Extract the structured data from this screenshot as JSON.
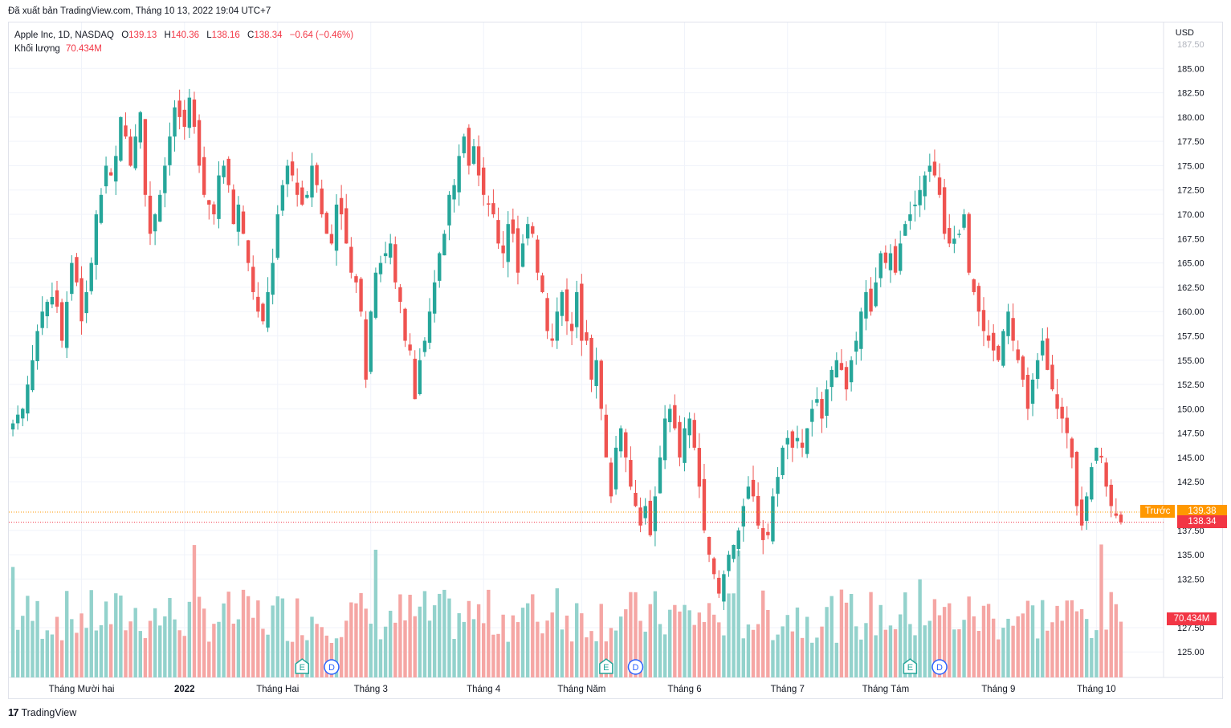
{
  "caption": "Đã xuất bản TradingView.com, Tháng 10 13, 2022 19:04 UTC+7",
  "legend": {
    "symbol": "Apple Inc, 1D, NASDAQ",
    "o_label": "O",
    "o_value": "139.13",
    "h_label": "H",
    "h_value": "140.36",
    "l_label": "L",
    "l_value": "138.16",
    "c_label": "C",
    "c_value": "138.34",
    "change": "−0.64 (−0.46%)",
    "volume_label": "Khối lượng",
    "volume_value": "70.434M"
  },
  "currency": "USD",
  "prev_label": "Trước",
  "prev_value": "139.38",
  "last_value": "138.34",
  "volume_badge": "70.434M",
  "footer": "TradingView",
  "colors": {
    "up": "#26a69a",
    "down": "#ef5350",
    "vol_up": "#93d2cc",
    "vol_down": "#f5a6a4",
    "prev": "#ff9800"
  },
  "events": [
    {
      "type": "E",
      "x_index": 59
    },
    {
      "type": "D",
      "x_index": 65
    },
    {
      "type": "E",
      "x_index": 121
    },
    {
      "type": "D",
      "x_index": 127
    },
    {
      "type": "E",
      "x_index": 183
    },
    {
      "type": "D",
      "x_index": 189
    }
  ],
  "chart_data": {
    "type": "candlestick",
    "ylim": [
      123.7,
      187.5
    ],
    "y_ticks": [
      "185.00",
      "182.50",
      "180.00",
      "177.50",
      "175.00",
      "172.50",
      "170.00",
      "167.50",
      "165.00",
      "162.50",
      "160.00",
      "157.50",
      "155.00",
      "152.50",
      "150.00",
      "147.50",
      "145.00",
      "142.50",
      "137.50",
      "135.00",
      "132.50",
      "127.50",
      "125.00"
    ],
    "x_ticks": [
      {
        "label": "Tháng Mười hai",
        "index": 14
      },
      {
        "label": "2022",
        "index": 35
      },
      {
        "label": "Tháng Hai",
        "index": 54
      },
      {
        "label": "Tháng 3",
        "index": 73
      },
      {
        "label": "Tháng 4",
        "index": 96
      },
      {
        "label": "Tháng Năm",
        "index": 116
      },
      {
        "label": "Tháng 6",
        "index": 137
      },
      {
        "label": "Tháng 7",
        "index": 158
      },
      {
        "label": "Tháng Tám",
        "index": 178
      },
      {
        "label": "Tháng 9",
        "index": 201
      },
      {
        "label": "Tháng 10",
        "index": 221
      }
    ],
    "close_path": [
      148.5,
      149.4,
      150.0,
      152.5,
      155.0,
      158.0,
      160.0,
      161.0,
      161.5,
      160.5,
      157.0,
      161.0,
      165.0,
      163.0,
      159.0,
      162.0,
      165.0,
      170.0,
      172.0,
      175.0,
      174.0,
      176.0,
      180.0,
      178.0,
      175.0,
      178.0,
      180.5,
      172.0,
      168.0,
      170.0,
      172.0,
      175.0,
      178.0,
      181.0,
      180.0,
      179.0,
      182.0,
      179.0,
      175.0,
      172.0,
      171.0,
      170.0,
      174.0,
      175.0,
      173.0,
      169.0,
      171.0,
      168.0,
      165.0,
      162.0,
      160.0,
      159.0,
      162.0,
      165.0,
      170.0,
      173.0,
      175.0,
      174.0,
      172.0,
      171.0,
      172.0,
      175.0,
      173.0,
      170.0,
      168.0,
      167.0,
      171.0,
      170.0,
      167.0,
      164.0,
      163.0,
      160.0,
      153.0,
      160.0,
      164.0,
      165.0,
      166.0,
      167.0,
      163.0,
      161.0,
      157.0,
      156.0,
      151.0,
      155.0,
      157.0,
      160.0,
      163.0,
      166.0,
      168.0,
      172.0,
      173.0,
      176.0,
      178.0,
      175.0,
      177.0,
      174.0,
      172.0,
      171.0,
      170.0,
      167.0,
      166.0,
      169.0,
      168.0,
      164.0,
      167.0,
      169.0,
      168.0,
      164.0,
      162.0,
      158.0,
      157.0,
      160.0,
      162.0,
      159.0,
      158.0,
      162.0,
      157.0,
      157.0,
      153.0,
      155.0,
      150.0,
      145.0,
      141.0,
      146.0,
      148.0,
      145.0,
      142.0,
      140.0,
      138.0,
      140.0,
      137.0,
      141.0,
      145.0,
      149.0,
      150.0,
      148.0,
      145.0,
      148.0,
      149.0,
      146.0,
      142.0,
      137.5,
      135.0,
      133.0,
      131.0,
      133.0,
      135.0,
      136.0,
      137.5,
      140.0,
      142.0,
      141.0,
      138.0,
      136.5,
      137.0,
      141.0,
      143.0,
      146.0,
      147.0,
      146.0,
      147.0,
      146.0,
      148.0,
      150.0,
      151.0,
      149.0,
      152.0,
      154.0,
      155.0,
      154.0,
      152.0,
      155.0,
      157.0,
      160.0,
      162.0,
      160.0,
      163.0,
      166.0,
      165.0,
      166.0,
      164.0,
      167.0,
      169.0,
      170.0,
      171.0,
      172.5,
      174.0,
      175.0,
      174.0,
      172.0,
      168.0,
      167.0,
      167.5,
      168.0,
      170.0,
      164.0,
      162.0,
      160.0,
      158.0,
      157.0,
      156.0,
      155.0,
      158.0,
      160.0,
      157.0,
      155.0,
      153.0,
      150.0,
      153.0,
      155.0,
      157.0,
      154.0,
      152.0,
      150.0,
      149.0,
      147.5,
      145.0,
      140.0,
      138.0,
      141.0,
      144.0,
      146.0,
      145.0,
      142.0,
      140.0,
      139.0,
      138.34
    ],
    "volume_ylim": [
      0,
      220
    ]
  }
}
